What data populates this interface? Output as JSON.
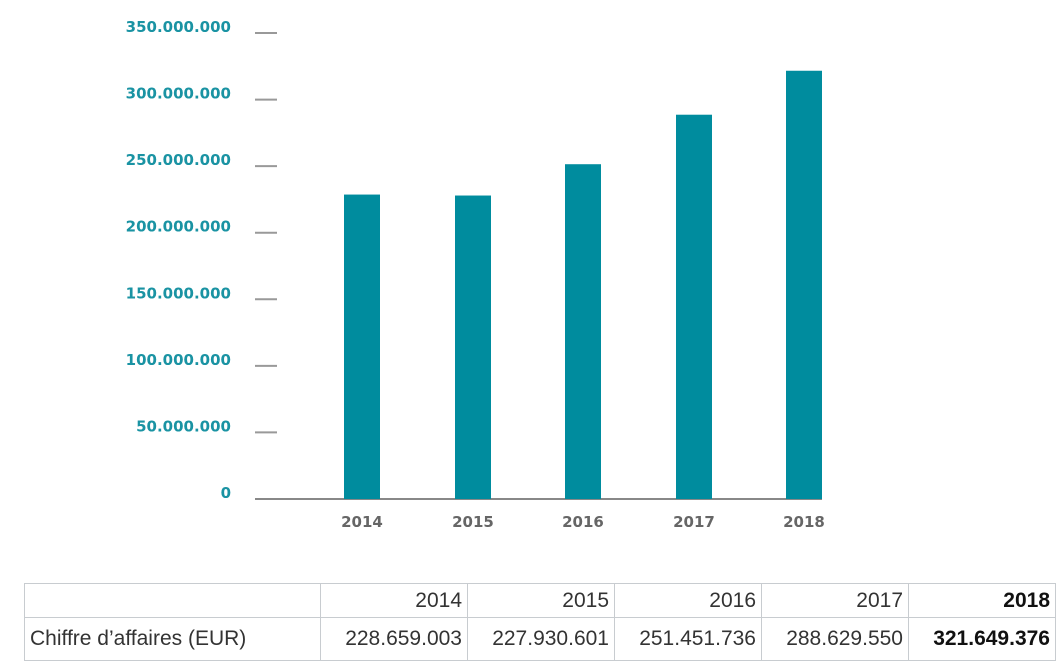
{
  "chart_data": {
    "type": "bar",
    "categories": [
      "2014",
      "2015",
      "2016",
      "2017",
      "2018"
    ],
    "values": [
      228659003,
      227930601,
      251451736,
      288629550,
      321649376
    ],
    "yticks": [
      "0",
      "50.000.000",
      "100.000.000",
      "150.000.000",
      "200.000.000",
      "250.000.000",
      "300.000.000",
      "350.000.000"
    ],
    "ylim": [
      0,
      350000000
    ],
    "bar_color": "#008c9e",
    "title": "",
    "xlabel": "",
    "ylabel": ""
  },
  "table": {
    "headers": [
      "",
      "2014",
      "2015",
      "2016",
      "2017",
      "2018"
    ],
    "row_label": "Chiffre d’affaires (EUR)",
    "values": [
      "228.659.003",
      "227.930.601",
      "251.451.736",
      "288.629.550",
      "321.649.376"
    ]
  }
}
